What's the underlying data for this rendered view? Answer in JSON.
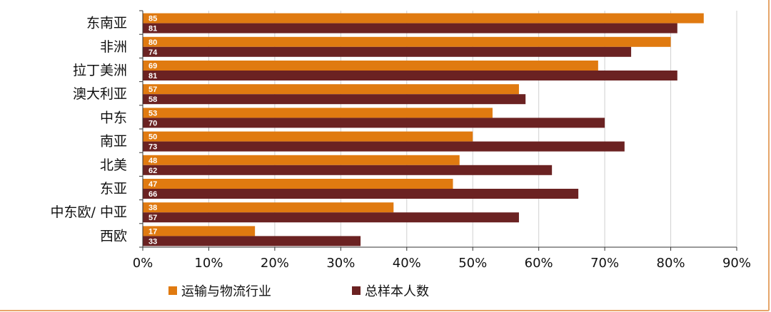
{
  "chart_data": {
    "type": "bar",
    "orientation": "horizontal",
    "categories": [
      "东南亚",
      "非洲",
      "拉丁美洲",
      "澳大利亚",
      "中东",
      "南亚",
      "北美",
      "东亚",
      "中东欧/ 中亚",
      "西欧"
    ],
    "series": [
      {
        "name": "运输与物流行业",
        "color": "#E07A10",
        "values": [
          85,
          80,
          69,
          57,
          53,
          50,
          48,
          47,
          38,
          17
        ]
      },
      {
        "name": "总样本人数",
        "color": "#6B2222",
        "values": [
          81,
          74,
          81,
          58,
          70,
          73,
          62,
          66,
          57,
          33
        ]
      }
    ],
    "xlim": [
      0,
      90
    ],
    "x_ticks": [
      0,
      10,
      20,
      30,
      40,
      50,
      60,
      70,
      80,
      90
    ],
    "x_tick_labels": [
      "0%",
      "10%",
      "20%",
      "30%",
      "40%",
      "50%",
      "60%",
      "70%",
      "80%",
      "90%"
    ],
    "grid": "vertical",
    "legend_position": "bottom",
    "title": "",
    "xlabel": "",
    "ylabel": ""
  }
}
